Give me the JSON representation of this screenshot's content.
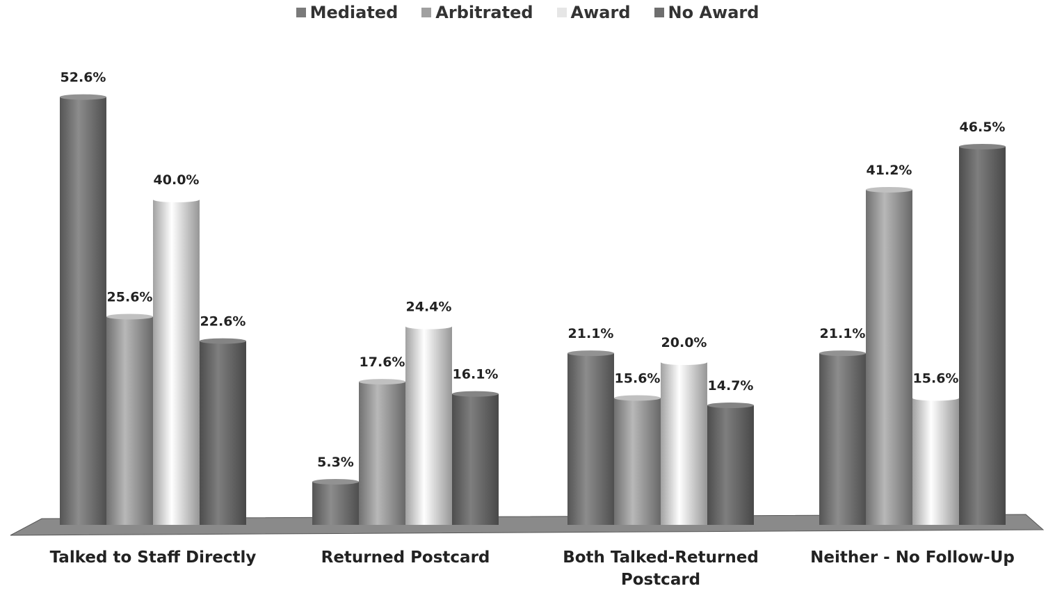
{
  "chart_data": {
    "type": "bar",
    "categories": [
      "Talked to Staff Directly",
      "Returned Postcard",
      "Both Talked-Returned Postcard",
      "Neither - No Follow-Up"
    ],
    "series": [
      {
        "name": "Mediated",
        "color": "#7a7a7a",
        "values": [
          52.6,
          5.3,
          21.1,
          21.1
        ],
        "value_labels": [
          "52.6%",
          "5.3%",
          "21.1%",
          "21.1%"
        ]
      },
      {
        "name": "Arbitrated",
        "color": "#a0a0a0",
        "values": [
          25.6,
          17.6,
          15.6,
          41.2
        ],
        "value_labels": [
          "25.6%",
          "17.6%",
          "15.6%",
          "41.2%"
        ]
      },
      {
        "name": "Award",
        "color": "#e6e6e6",
        "values": [
          40.0,
          24.4,
          20.0,
          15.6
        ],
        "value_labels": [
          "40.0%",
          "24.4%",
          "20.0%",
          "15.6%"
        ]
      },
      {
        "name": "No Award",
        "color": "#6e6e6e",
        "values": [
          22.6,
          16.1,
          14.7,
          46.5
        ],
        "value_labels": [
          "22.6%",
          "16.1%",
          "14.7%",
          "46.5%"
        ]
      }
    ]
  }
}
